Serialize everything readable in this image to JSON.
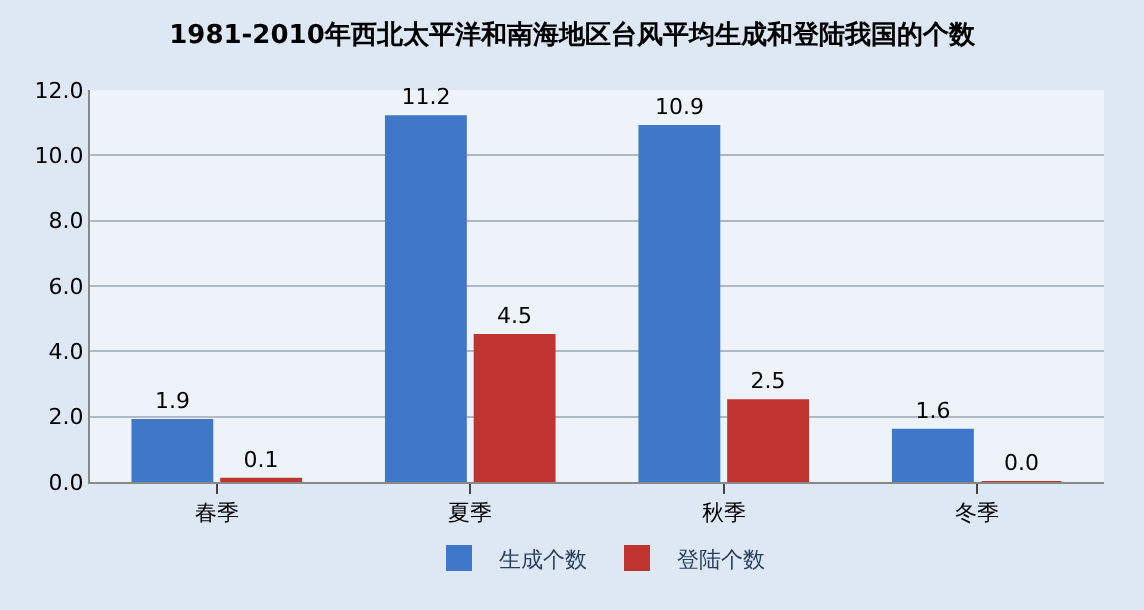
{
  "chart_data": {
    "type": "bar",
    "title": "1981-2010年西北太平洋和南海地区台风平均生成和登陆我国的个数",
    "categories": [
      "春季",
      "夏季",
      "秋季",
      "冬季"
    ],
    "series": [
      {
        "name": "生成个数",
        "color": "#3f78c8",
        "values": [
          1.9,
          11.2,
          10.9,
          1.6
        ],
        "value_labels": [
          "1.9",
          "11.2",
          "10.9",
          "1.6"
        ]
      },
      {
        "name": "登陆个数",
        "color": "#c0342f",
        "values": [
          0.1,
          4.5,
          2.5,
          0.0
        ],
        "value_labels": [
          "0.1",
          "4.5",
          "2.5",
          "0.0"
        ]
      }
    ],
    "ylim": [
      0,
      12
    ],
    "yticks": [
      {
        "value": 0,
        "label": "0.0"
      },
      {
        "value": 2,
        "label": "2.0"
      },
      {
        "value": 4,
        "label": "4.0"
      },
      {
        "value": 6,
        "label": "6.0"
      },
      {
        "value": 8,
        "label": "8.0"
      },
      {
        "value": 10,
        "label": "10.0"
      },
      {
        "value": 12,
        "label": "12.0"
      }
    ],
    "grid": "y",
    "legend": "bottom"
  }
}
